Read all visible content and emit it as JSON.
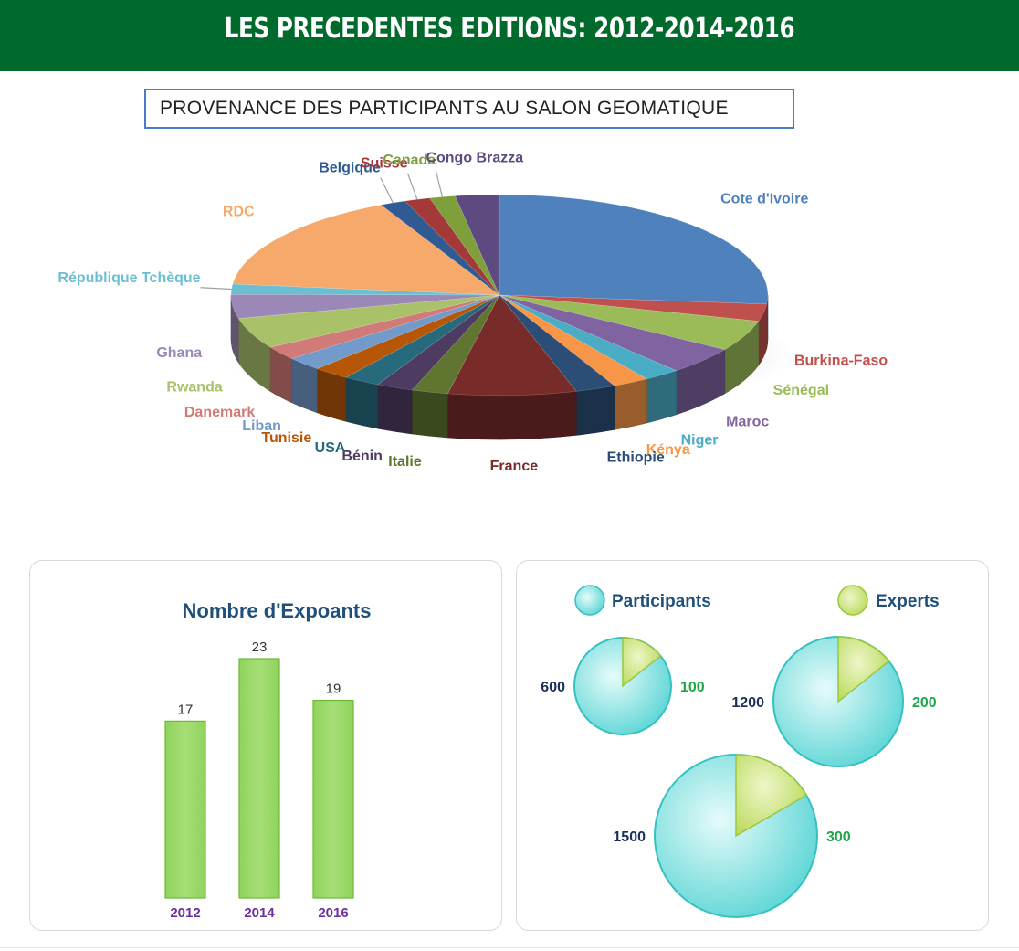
{
  "banner": {
    "title": "LES PRECEDENTES EDITIONS: 2012-2014-2016"
  },
  "colors": {
    "banner": "#006a2d",
    "bar": "#9ad66a",
    "bubble": "#5fd6d6",
    "bubble_slice": "#c8e27a"
  },
  "chart_data": [
    {
      "type": "pie",
      "title": "PROVENANCE DES PARTICIPANTS AU SALON  GEOMATIQUE",
      "labels": [
        "Cote d'Ivoire",
        "Burkina-Faso",
        "Sénégal",
        "Maroc",
        "Niger",
        "Kénya",
        "Ethiopie",
        "France",
        "Italie",
        "Bénin",
        "USA",
        "Tunisie",
        "Liban",
        "Danemark",
        "Rwanda",
        "Ghana",
        "République Tchèque",
        "RDC",
        "Belgique",
        "Suisse",
        "Canada",
        "Congo Brazza"
      ],
      "values": [
        24.0,
        2.5,
        4.5,
        4.0,
        2.0,
        2.0,
        2.2,
        7.0,
        2.0,
        2.0,
        2.0,
        2.0,
        2.0,
        2.0,
        4.5,
        3.5,
        1.5,
        14.5,
        1.4,
        1.4,
        1.4,
        2.4
      ],
      "colors": [
        "#4f81bd",
        "#c0504d",
        "#9bbb59",
        "#8064a2",
        "#4bacc6",
        "#f79646",
        "#2c4d75",
        "#772c2a",
        "#5f7530",
        "#4d3b62",
        "#276a7c",
        "#b65708",
        "#729aca",
        "#d07b78",
        "#a9c26a",
        "#9b88b7",
        "#6cbfd3",
        "#f6a96b",
        "#2f5a92",
        "#a33a38",
        "#7e9f3c",
        "#5c4a80"
      ],
      "label_colors": [
        "#4f81bd",
        "#c0504d",
        "#9bbb59",
        "#8064a2",
        "#4bacc6",
        "#f79646",
        "#2c4d75",
        "#772c2a",
        "#5f7530",
        "#4d3b62",
        "#276a7c",
        "#b65708",
        "#729aca",
        "#d07b78",
        "#a9c26a",
        "#9b88b7",
        "#6cbfd3",
        "#f6a96b",
        "#2f5a92",
        "#a33a38",
        "#7e9f3c",
        "#5c4a80"
      ]
    },
    {
      "type": "bar",
      "title": "Nombre d'Expoants",
      "categories": [
        "2012",
        "2014",
        "2016"
      ],
      "values": [
        17,
        23,
        19
      ],
      "ylim": [
        0,
        25
      ]
    },
    {
      "type": "pie",
      "legend": [
        "Participants",
        "Experts"
      ],
      "series": [
        {
          "participants": 600,
          "experts": 100
        },
        {
          "participants": 1200,
          "experts": 200
        },
        {
          "participants": 1500,
          "experts": 300
        }
      ]
    }
  ]
}
